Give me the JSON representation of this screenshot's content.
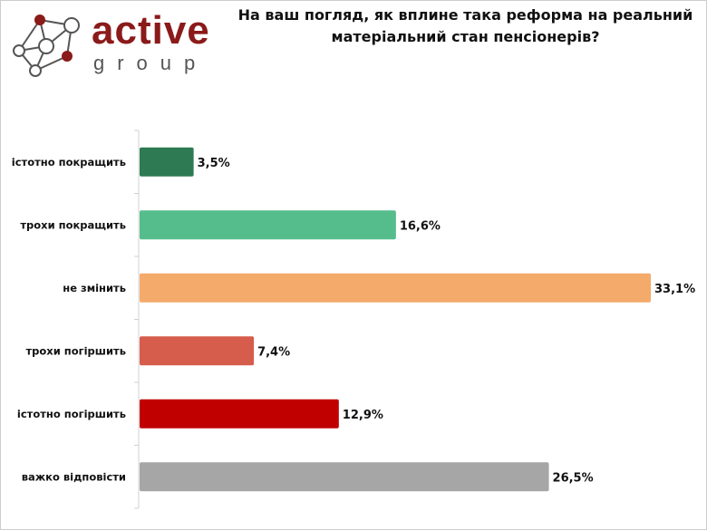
{
  "logo": {
    "brand": "active",
    "sub": "group"
  },
  "chart_data": {
    "type": "bar",
    "orientation": "horizontal",
    "title": "На ваш погляд, як вплине така реформа на реальний матеріальний стан пенсіонерів?",
    "categories": [
      "істотно покращить",
      "трохи покращить",
      "не змінить",
      "трохи погіршить",
      "істотно погіршить",
      "важко відповісти"
    ],
    "values": [
      3.5,
      16.6,
      33.1,
      7.4,
      12.9,
      26.5
    ],
    "value_labels": [
      "3,5%",
      "16,6%",
      "33,1%",
      "7,4%",
      "12,9%",
      "26,5%"
    ],
    "colors": [
      "#2e7a52",
      "#55bd8b",
      "#f4aa6b",
      "#d65c4b",
      "#c00000",
      "#a6a6a6"
    ],
    "unit": "%",
    "xlim": [
      0,
      33.1
    ]
  }
}
